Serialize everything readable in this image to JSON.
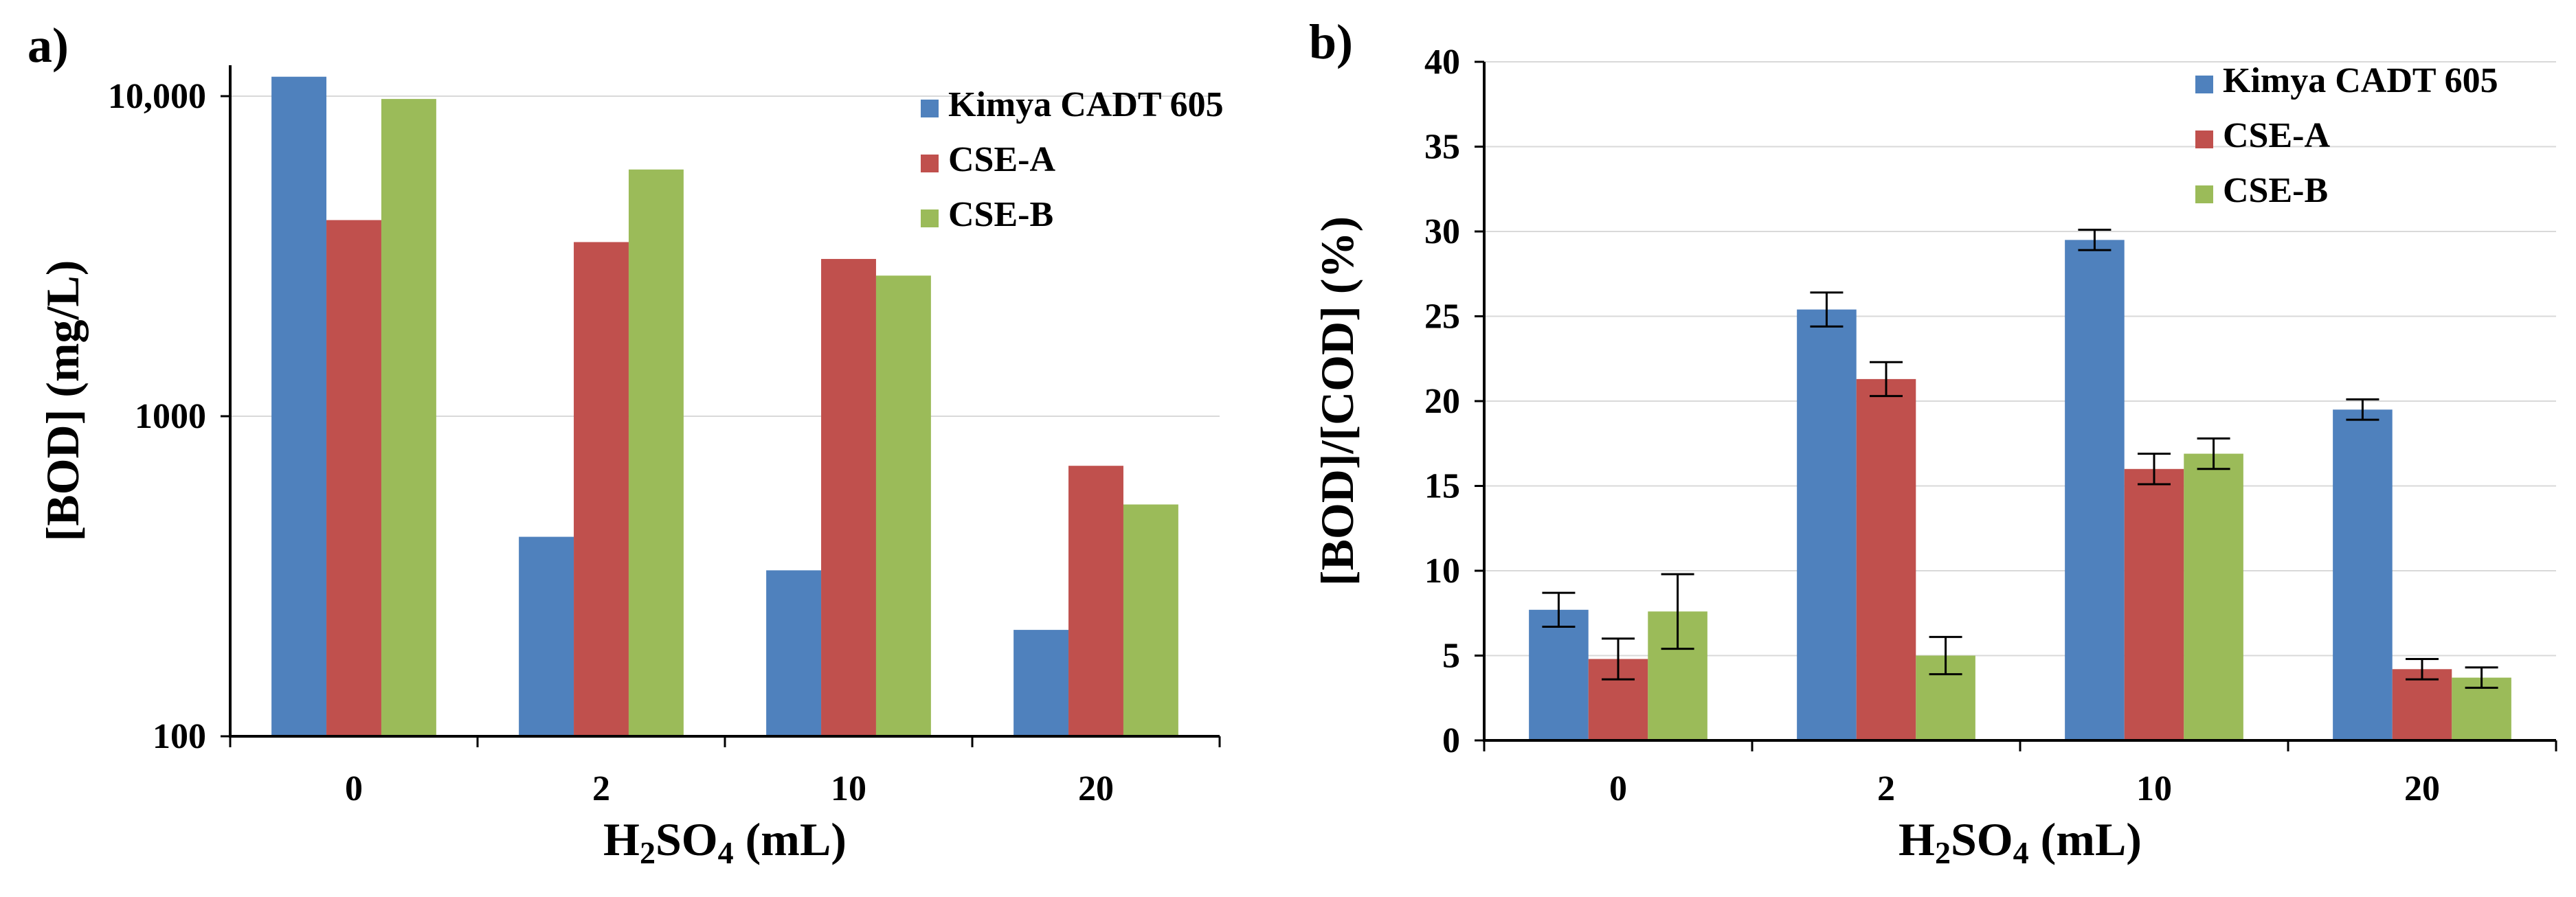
{
  "chart_data": [
    {
      "panel_label": "a)",
      "type": "bar",
      "scale": "log",
      "categories": [
        "0",
        "2",
        "10",
        "20"
      ],
      "series": [
        {
          "name": "Kimya CADT 605",
          "color": "#4f81bd",
          "values": [
            11500,
            420,
            330,
            215
          ]
        },
        {
          "name": "CSE-A",
          "color": "#c0504d",
          "values": [
            4100,
            3500,
            3100,
            700
          ]
        },
        {
          "name": "CSE-B",
          "color": "#9bbb59",
          "values": [
            9800,
            5900,
            2750,
            530
          ]
        }
      ],
      "ylim": [
        100,
        10000
      ],
      "y_ticks": [
        {
          "value": 100,
          "label": "100"
        },
        {
          "value": 1000,
          "label": "1000"
        },
        {
          "value": 10000,
          "label": "10,000"
        }
      ],
      "ylabel": "[BOD] (mg/L)",
      "xlabel": {
        "main": "H",
        "sub": "2",
        "mid": "SO",
        "sub2": "4",
        "tail": " (mL)"
      },
      "legend_position": "top-right"
    },
    {
      "panel_label": "b)",
      "type": "bar",
      "scale": "linear",
      "categories": [
        "0",
        "2",
        "10",
        "20"
      ],
      "series": [
        {
          "name": "Kimya CADT 605",
          "color": "#4f81bd",
          "values": [
            7.7,
            25.4,
            29.5,
            19.5
          ],
          "errors": [
            1.0,
            1.0,
            0.6,
            0.6
          ]
        },
        {
          "name": "CSE-A",
          "color": "#c0504d",
          "values": [
            4.8,
            21.3,
            16.0,
            4.2
          ],
          "errors": [
            1.2,
            1.0,
            0.9,
            0.6
          ]
        },
        {
          "name": "CSE-B",
          "color": "#9bbb59",
          "values": [
            7.6,
            5.0,
            16.9,
            3.7
          ],
          "errors": [
            2.2,
            1.1,
            0.9,
            0.6
          ]
        }
      ],
      "ylim": [
        0,
        40
      ],
      "y_ticks": [
        {
          "value": 0,
          "label": "0"
        },
        {
          "value": 5,
          "label": "5"
        },
        {
          "value": 10,
          "label": "10"
        },
        {
          "value": 15,
          "label": "15"
        },
        {
          "value": 20,
          "label": "20"
        },
        {
          "value": 25,
          "label": "25"
        },
        {
          "value": 30,
          "label": "30"
        },
        {
          "value": 35,
          "label": "35"
        },
        {
          "value": 40,
          "label": "40"
        }
      ],
      "ylabel": "[BOD]/[COD] (%)",
      "xlabel": {
        "main": "H",
        "sub": "2",
        "mid": "SO",
        "sub2": "4",
        "tail": " (mL)"
      },
      "legend_position": "top-right"
    }
  ]
}
